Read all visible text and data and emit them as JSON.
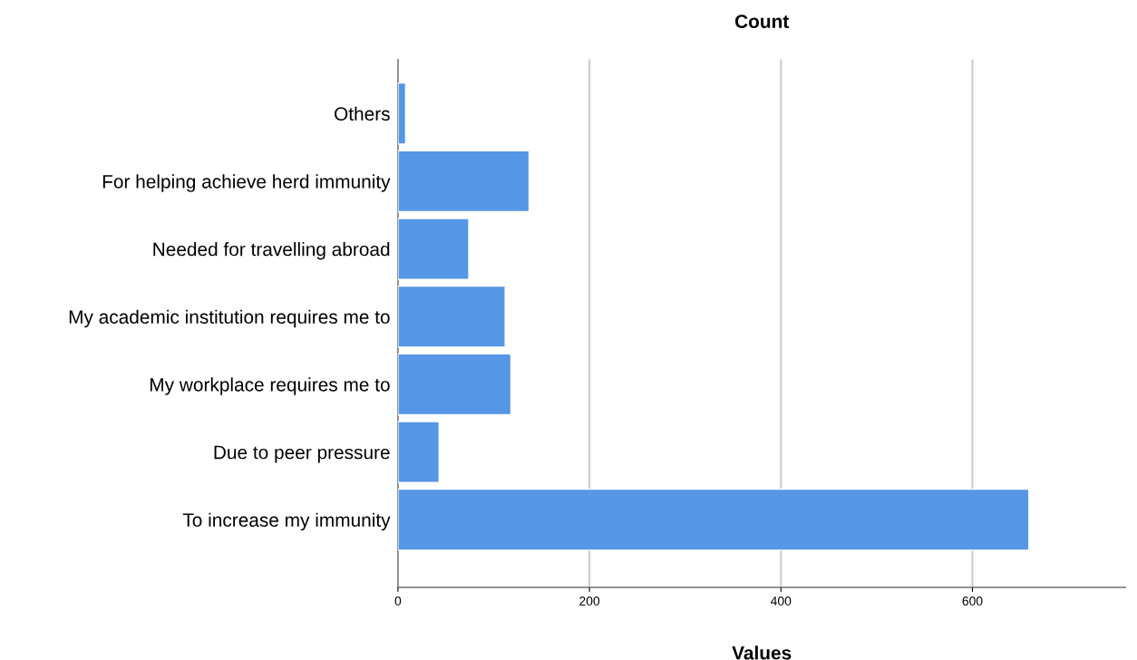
{
  "chart_data": {
    "type": "bar",
    "orientation": "horizontal",
    "title": "Count",
    "xlabel": "Values",
    "categories": [
      "Others",
      "For helping achieve herd immunity",
      "Needed for travelling abroad",
      "My academic institution requires me to",
      "My workplace requires me to",
      "Due to peer pressure",
      "To increase my immunity"
    ],
    "values": [
      8,
      137,
      74,
      112,
      118,
      43,
      659
    ],
    "color": "#5596e6",
    "xlim": [
      0,
      760
    ],
    "xticks": [
      0,
      200,
      400,
      600
    ],
    "grid": "x"
  }
}
